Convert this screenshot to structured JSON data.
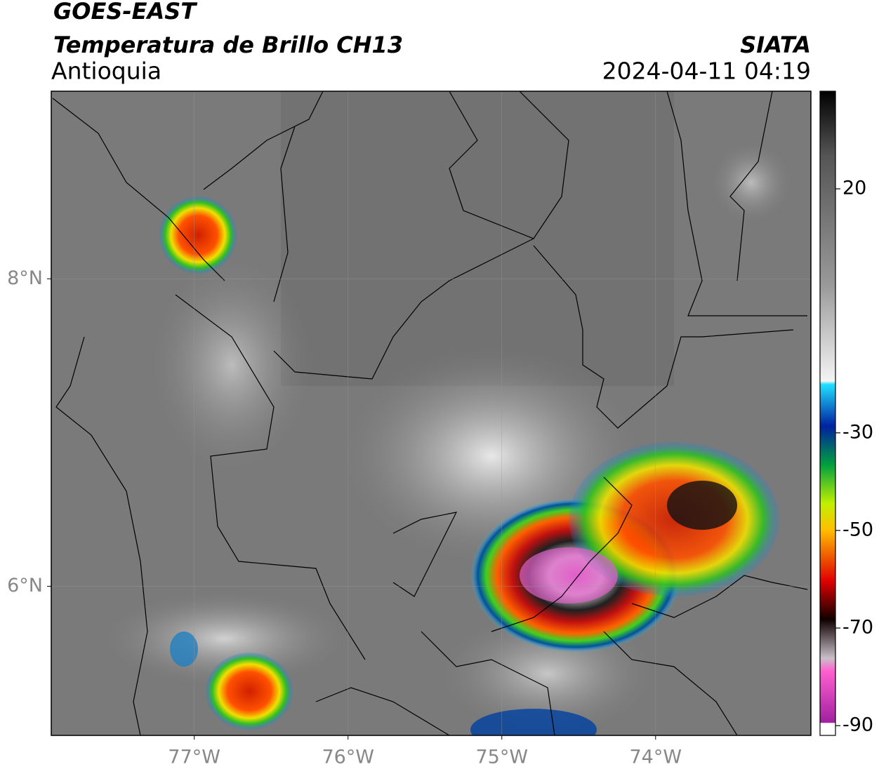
{
  "header": {
    "satellite": "GOES-EAST",
    "product": "Temperatura de Brillo CH13",
    "region": "Antioquia",
    "source": "SIATA",
    "datetime": "2024-04-11 04:19"
  },
  "map": {
    "xlim": [
      -77.93,
      -72.99
    ],
    "ylim": [
      5.03,
      9.22
    ],
    "xticks": [
      {
        "value": -77,
        "label": "77°W"
      },
      {
        "value": -76,
        "label": "76°W"
      },
      {
        "value": -75,
        "label": "75°W"
      },
      {
        "value": -74,
        "label": "74°W"
      }
    ],
    "yticks": [
      {
        "value": 8,
        "label": "8°N"
      },
      {
        "value": 6,
        "label": "6°N"
      }
    ],
    "grid": true
  },
  "colorbar": {
    "lim": [
      -92,
      40
    ],
    "ticks": [
      20,
      -30,
      -50,
      -70,
      -90
    ]
  }
}
